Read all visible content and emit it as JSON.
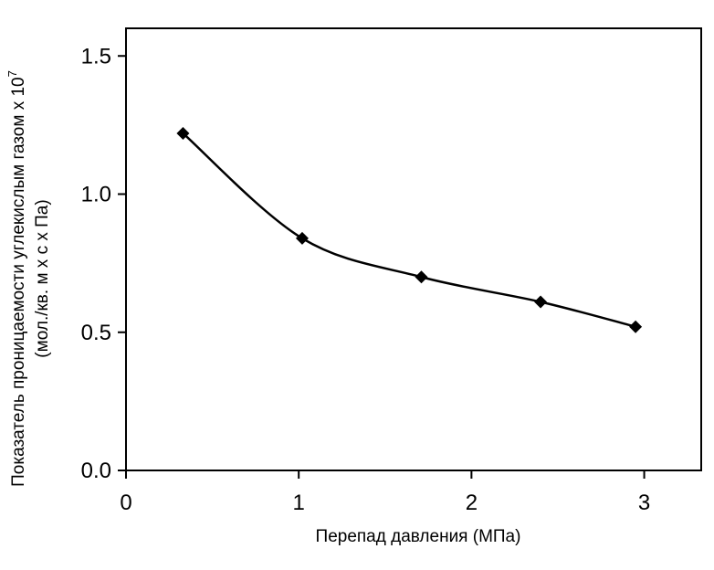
{
  "chart_data": {
    "type": "line",
    "title": "",
    "xlabel": "Перепад давления (МПа)",
    "ylabel_line1": "Показатель проницаемости углекислым газом x 10",
    "ylabel_exp": "7",
    "ylabel_line2": "(мол./кв. м x с x Па)",
    "xlim": [
      0,
      3.33
    ],
    "ylim": [
      0,
      1.6
    ],
    "xticks": [
      "0",
      "1",
      "2",
      "3"
    ],
    "xtick_values": [
      0,
      1,
      2,
      3
    ],
    "yticks": [
      "0.0",
      "0.5",
      "1.0",
      "1.5"
    ],
    "ytick_values": [
      0.0,
      0.5,
      1.0,
      1.5
    ],
    "grid": false,
    "marker": "diamond",
    "color": "#000000",
    "series": [
      {
        "x": [
          0.33,
          1.02,
          1.71,
          2.4,
          2.95
        ],
        "y": [
          1.22,
          0.84,
          0.7,
          0.61,
          0.52
        ]
      }
    ]
  }
}
